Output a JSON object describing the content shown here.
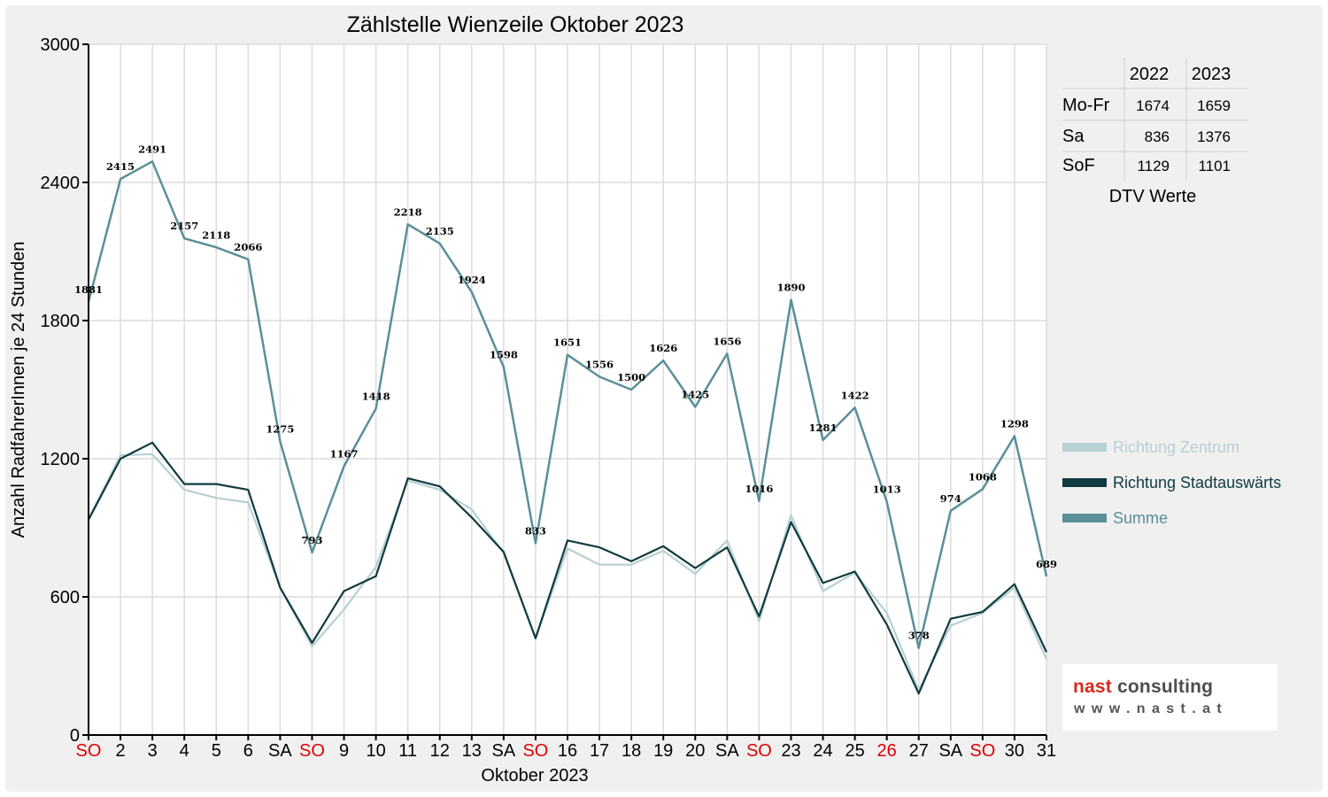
{
  "chart_data": {
    "type": "line",
    "title": "Zählstelle Wienzeile Oktober 2023",
    "xlabel": "Oktober 2023",
    "ylabel": "Anzahl RadfahrerInnen je 24 Stunden",
    "ylim": [
      0,
      3000
    ],
    "yticks": [
      0,
      600,
      1200,
      1800,
      2400,
      3000
    ],
    "grid": true,
    "legend_position": "right",
    "categories": [
      "SO",
      "2",
      "3",
      "4",
      "5",
      "6",
      "SA",
      "SO",
      "9",
      "10",
      "11",
      "12",
      "13",
      "SA",
      "SO",
      "16",
      "17",
      "18",
      "19",
      "20",
      "SA",
      "SO",
      "23",
      "24",
      "25",
      "26",
      "27",
      "SA",
      "SO",
      "30",
      "31"
    ],
    "category_colors": [
      "#e00000",
      "#000000",
      "#000000",
      "#000000",
      "#000000",
      "#000000",
      "#000000",
      "#e00000",
      "#000000",
      "#000000",
      "#000000",
      "#000000",
      "#000000",
      "#000000",
      "#e00000",
      "#000000",
      "#000000",
      "#000000",
      "#000000",
      "#000000",
      "#000000",
      "#e00000",
      "#000000",
      "#000000",
      "#000000",
      "#e00000",
      "#000000",
      "#000000",
      "#e00000",
      "#000000",
      "#000000"
    ],
    "series": [
      {
        "name": "Richtung Zentrum",
        "color": "#b7d0d3",
        "labeled": false,
        "values": [
          940,
          1215,
          1220,
          1065,
          1030,
          1010,
          640,
          385,
          545,
          730,
          1105,
          1065,
          980,
          790,
          420,
          810,
          740,
          740,
          800,
          700,
          845,
          495,
          955,
          625,
          705,
          530,
          195,
          475,
          530,
          640,
          330
        ]
      },
      {
        "name": "Richtung Stadtauswärts",
        "color": "#0f3b40",
        "labeled": false,
        "values": [
          935,
          1200,
          1270,
          1090,
          1090,
          1065,
          640,
          400,
          625,
          690,
          1115,
          1080,
          945,
          795,
          420,
          845,
          815,
          755,
          820,
          725,
          815,
          515,
          925,
          660,
          710,
          480,
          180,
          505,
          535,
          655,
          360
        ]
      },
      {
        "name": "Summe",
        "color": "#5a8f98",
        "labeled": true,
        "values": [
          1881,
          2415,
          2491,
          2157,
          2118,
          2066,
          1275,
          793,
          1167,
          1418,
          2218,
          2135,
          1924,
          1598,
          833,
          1651,
          1556,
          1500,
          1626,
          1425,
          1656,
          1016,
          1890,
          1281,
          1422,
          1013,
          378,
          974,
          1068,
          1298,
          689
        ]
      }
    ],
    "dtv_table": {
      "caption": "DTV Werte",
      "headers": [
        "",
        "2022",
        "2023"
      ],
      "rows": [
        {
          "label": "Mo-Fr",
          "v2022": "1674",
          "v2023": "1659"
        },
        {
          "label": "Sa",
          "v2022": "836",
          "v2023": "1376"
        },
        {
          "label": "SoF",
          "v2022": "1129",
          "v2023": "1101"
        }
      ]
    }
  },
  "logo": {
    "part1": "nast",
    "part2": " consulting",
    "sub": "www.nast.at"
  }
}
